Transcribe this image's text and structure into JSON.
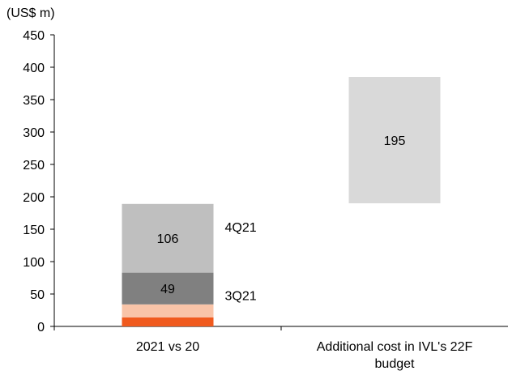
{
  "chart_data": {
    "type": "bar",
    "stacked": true,
    "waterfall": true,
    "unit_label": "(US$ m)",
    "ylim": [
      0,
      450
    ],
    "yticks": [
      0,
      50,
      100,
      150,
      200,
      250,
      300,
      350,
      400,
      450
    ],
    "grid": false,
    "categories": [
      "2021 vs 20",
      "Additional cost in IVL's 22F budget"
    ],
    "category_lines": [
      [
        "2021 vs 20"
      ],
      [
        "Additional cost in IVL's 22F",
        "budget"
      ]
    ],
    "segments": [
      {
        "category": 0,
        "base": 0,
        "value": 14,
        "color": "#F05A1E",
        "label": ""
      },
      {
        "category": 0,
        "base": 14,
        "value": 20,
        "color": "#F9C4A8",
        "label": ""
      },
      {
        "category": 0,
        "base": 34,
        "value": 49,
        "color": "#808080",
        "label": "49",
        "side_label": "3Q21"
      },
      {
        "category": 0,
        "base": 83,
        "value": 106,
        "color": "#BFBFBF",
        "label": "106",
        "side_label": "4Q21"
      },
      {
        "category": 1,
        "base": 190,
        "value": 195,
        "color": "#D9D9D9",
        "label": "195"
      }
    ]
  }
}
